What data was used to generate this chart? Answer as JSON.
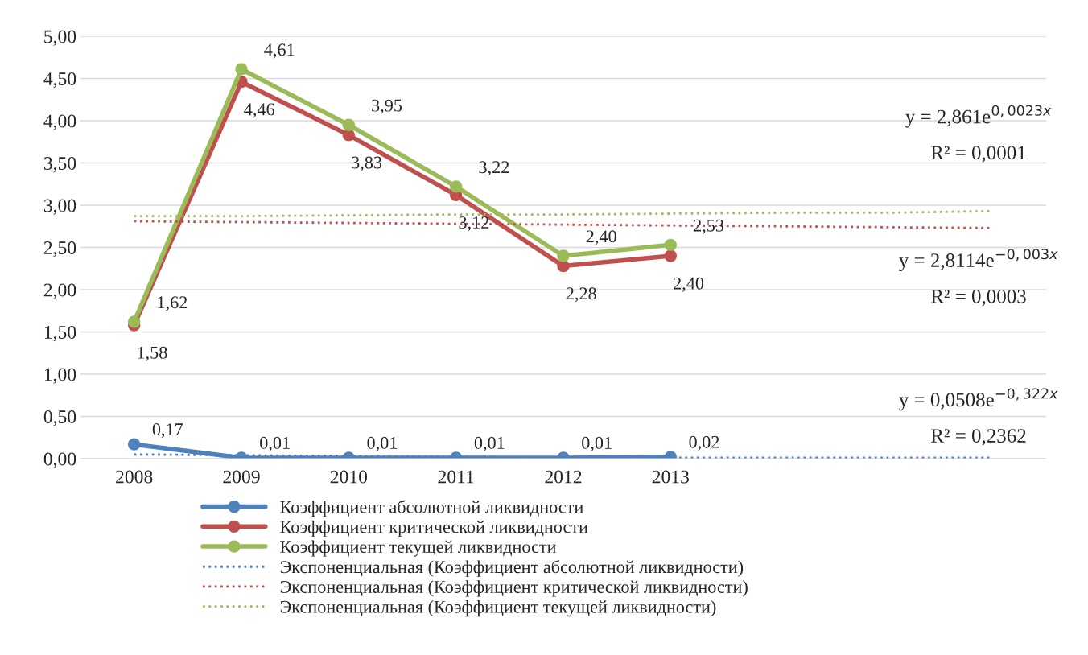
{
  "chart_data": {
    "type": "line",
    "categories": [
      "2008",
      "2009",
      "2010",
      "2011",
      "2012",
      "2013",
      null,
      null,
      null
    ],
    "series": [
      {
        "name": "Коэффициент абсолютной ликвидности",
        "color": "#4f81bd",
        "marker": "circle",
        "line_style": "solid",
        "values": [
          0.17,
          0.01,
          0.01,
          0.01,
          0.01,
          0.02,
          null,
          null,
          null
        ],
        "value_labels": [
          "0,17",
          "0,01",
          "0,01",
          "0,01",
          "0,01",
          "0,02",
          null,
          null,
          null
        ]
      },
      {
        "name": "Коэффициент критической ликвидности",
        "color": "#c0504d",
        "marker": "circle",
        "line_style": "solid",
        "values": [
          1.58,
          4.46,
          3.83,
          3.12,
          2.28,
          2.4,
          null,
          null,
          null
        ],
        "value_labels": [
          "1,58",
          "4,46",
          "3,83",
          "3,12",
          "2,28",
          "2,40",
          null,
          null,
          null
        ]
      },
      {
        "name": "Коэффициент текущей ликвидности",
        "color": "#9bbb59",
        "marker": "circle",
        "line_style": "solid",
        "values": [
          1.62,
          4.61,
          3.95,
          3.22,
          2.4,
          2.53,
          null,
          null,
          null
        ],
        "value_labels": [
          "1,62",
          "4,61",
          "3,95",
          "3,22",
          "2,40",
          "2,53",
          null,
          null,
          null
        ]
      },
      {
        "name": "Экспоненциальная (Коэффициент абсолютной ликвидности)",
        "color": "#4f81bd",
        "marker": "none",
        "line_style": "dotted",
        "values": [
          0.05,
          0.04,
          0.03,
          0.02,
          0.01,
          0.01,
          0.01,
          0.01,
          0.01
        ]
      },
      {
        "name": "Экспоненциальная (Коэффициент критической ликвидности)",
        "color": "#c0504d",
        "marker": "none",
        "line_style": "dotted",
        "values": [
          2.81,
          2.8,
          2.79,
          2.78,
          2.77,
          2.76,
          2.75,
          2.74,
          2.73
        ]
      },
      {
        "name": "Экспоненциальная (Коэффициент текущей ликвидности)",
        "color": "#9bbb59",
        "marker": "none",
        "line_style": "dotted",
        "values": [
          2.87,
          2.87,
          2.88,
          2.89,
          2.89,
          2.9,
          2.91,
          2.91,
          2.93
        ]
      }
    ],
    "annotations": [
      "y = 2,861e$^{0,0023x}$",
      "R² = 0,0001",
      "y = 2,8114e$^{−0,003x}$",
      "R² = 0,0003",
      "y = 0,0508e$^{−0,322x}$",
      "R² = 0,2362"
    ],
    "ylim": [
      0,
      5
    ],
    "yticks": [
      {
        "value": 0,
        "label": "0,00"
      },
      {
        "value": 0.5,
        "label": "0,50"
      },
      {
        "value": 1,
        "label": "1,00"
      },
      {
        "value": 1.5,
        "label": "1,50"
      },
      {
        "value": 2,
        "label": "2,00"
      },
      {
        "value": 2.5,
        "label": "2,50"
      },
      {
        "value": 3,
        "label": "3,00"
      },
      {
        "value": 3.5,
        "label": "3,50"
      },
      {
        "value": 4,
        "label": "4,00"
      },
      {
        "value": 4.5,
        "label": "4,50"
      },
      {
        "value": 5,
        "label": "5,00"
      }
    ],
    "grid": "y",
    "legend": "bottom"
  }
}
